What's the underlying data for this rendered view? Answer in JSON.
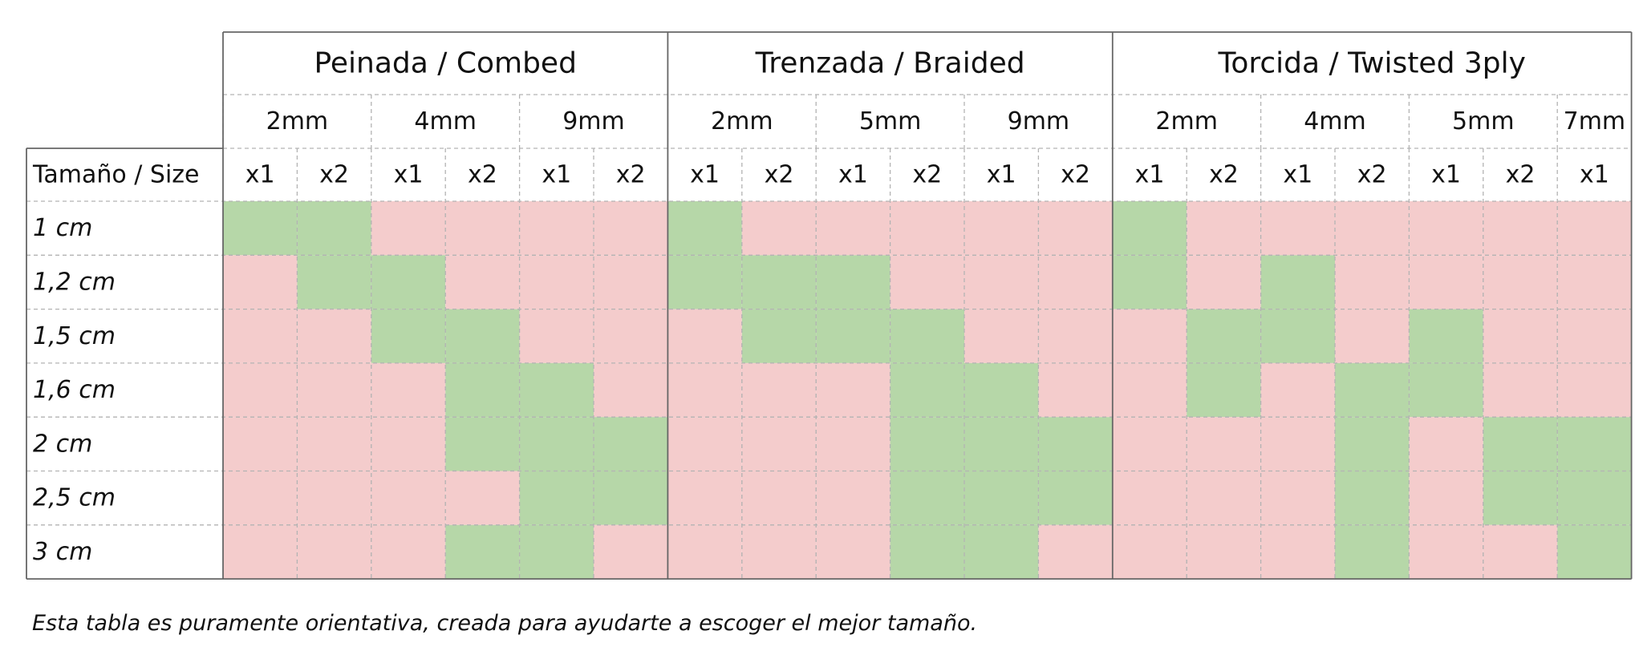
{
  "table": {
    "corner_label": "Tamaño / Size",
    "groups": [
      {
        "title": "Peinada / Combed",
        "sizes": [
          {
            "label": "2mm",
            "subs": [
              "x1",
              "x2"
            ]
          },
          {
            "label": "4mm",
            "subs": [
              "x1",
              "x2"
            ]
          },
          {
            "label": "9mm",
            "subs": [
              "x1",
              "x2"
            ]
          }
        ]
      },
      {
        "title": "Trenzada / Braided",
        "sizes": [
          {
            "label": "2mm",
            "subs": [
              "x1",
              "x2"
            ]
          },
          {
            "label": "5mm",
            "subs": [
              "x1",
              "x2"
            ]
          },
          {
            "label": "9mm",
            "subs": [
              "x1",
              "x2"
            ]
          }
        ]
      },
      {
        "title": "Torcida / Twisted 3ply",
        "sizes": [
          {
            "label": "2mm",
            "subs": [
              "x1",
              "x2"
            ]
          },
          {
            "label": "4mm",
            "subs": [
              "x1",
              "x2"
            ]
          },
          {
            "label": "5mm",
            "subs": [
              "x1",
              "x2"
            ]
          },
          {
            "label": "7mm",
            "subs": [
              "x1"
            ]
          }
        ]
      }
    ],
    "rows": [
      {
        "label": "1 cm",
        "values": [
          1,
          1,
          0,
          0,
          0,
          0,
          1,
          0,
          0,
          0,
          0,
          0,
          1,
          0,
          0,
          0,
          0,
          0,
          0
        ]
      },
      {
        "label": "1,2 cm",
        "values": [
          0,
          1,
          1,
          0,
          0,
          0,
          1,
          1,
          1,
          0,
          0,
          0,
          1,
          0,
          1,
          0,
          0,
          0,
          0
        ]
      },
      {
        "label": "1,5 cm",
        "values": [
          0,
          0,
          1,
          1,
          0,
          0,
          0,
          1,
          1,
          1,
          0,
          0,
          0,
          1,
          1,
          0,
          1,
          0,
          0
        ]
      },
      {
        "label": "1,6 cm",
        "values": [
          0,
          0,
          0,
          1,
          1,
          0,
          0,
          0,
          0,
          1,
          1,
          0,
          0,
          1,
          0,
          1,
          1,
          0,
          0
        ]
      },
      {
        "label": "2 cm",
        "values": [
          0,
          0,
          0,
          1,
          1,
          1,
          0,
          0,
          0,
          1,
          1,
          1,
          0,
          0,
          0,
          1,
          0,
          1,
          1
        ]
      },
      {
        "label": "2,5 cm",
        "values": [
          0,
          0,
          0,
          0,
          1,
          1,
          0,
          0,
          0,
          1,
          1,
          1,
          0,
          0,
          0,
          1,
          0,
          1,
          1
        ]
      },
      {
        "label": "3 cm",
        "values": [
          0,
          0,
          0,
          1,
          1,
          0,
          0,
          0,
          0,
          1,
          1,
          0,
          0,
          0,
          0,
          1,
          0,
          0,
          1
        ]
      }
    ],
    "colors": {
      "suitable": "#b6d7a8",
      "not_suitable": "#f4cccc",
      "border": "#666666",
      "dashed": "#b3b3b3"
    }
  },
  "note": "Esta tabla es puramente orientativa, creada para ayudarte a escoger el mejor tamaño."
}
